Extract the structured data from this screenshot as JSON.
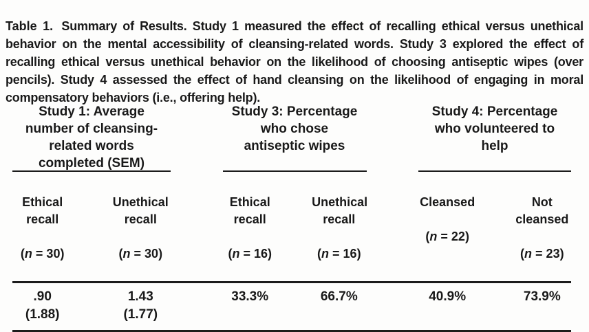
{
  "caption": {
    "label": "Table 1.",
    "text": "Summary of Results. Study 1 measured the effect of recalling ethical versus unethical behavior on the mental accessibility of cleansing-related words. Study 3 explored the effect of recalling ethical versus unethical behavior on the likelihood of choosing antiseptic wipes (over pencils). Study 4 assessed the effect of hand cleansing on the likelihood of engaging in moral compensatory behaviors (i.e., offering help)."
  },
  "table": {
    "groups": [
      {
        "title_lines": [
          "Study 1: Average",
          "number of cleansing-",
          "related words",
          "completed (SEM)"
        ],
        "columns": [
          {
            "label_lines": [
              "Ethical",
              "recall"
            ],
            "n_open": "(",
            "n_symbol": "n",
            "n_tail": " = 30)",
            "value_lines": [
              ".90",
              "(1.88)"
            ]
          },
          {
            "label_lines": [
              "Unethical",
              "recall"
            ],
            "n_open": "(",
            "n_symbol": "n",
            "n_tail": " = 30)",
            "value_lines": [
              "1.43",
              "(1.77)"
            ]
          }
        ]
      },
      {
        "title_lines": [
          "Study 3: Percentage",
          "who chose",
          "antiseptic wipes"
        ],
        "columns": [
          {
            "label_lines": [
              "Ethical",
              "recall"
            ],
            "n_open": "(",
            "n_symbol": "n",
            "n_tail": " = 16)",
            "value_lines": [
              "33.3%"
            ]
          },
          {
            "label_lines": [
              "Unethical",
              "recall"
            ],
            "n_open": "(",
            "n_symbol": "n",
            "n_tail": " = 16)",
            "value_lines": [
              "66.7%"
            ]
          }
        ]
      },
      {
        "title_lines": [
          "Study 4: Percentage",
          "who volunteered to",
          "help"
        ],
        "columns": [
          {
            "label_lines": [
              "Cleansed"
            ],
            "n_open": "(",
            "n_symbol": "n",
            "n_tail": " = 22)",
            "value_lines": [
              "40.9%"
            ]
          },
          {
            "label_lines": [
              "Not",
              "cleansed"
            ],
            "n_open": "(",
            "n_symbol": "n",
            "n_tail": " = 23)",
            "value_lines": [
              "73.9%"
            ]
          }
        ]
      }
    ]
  },
  "colors": {
    "text": "#191919",
    "rule": "#1c1c1c",
    "background": "#fdfdfc"
  }
}
